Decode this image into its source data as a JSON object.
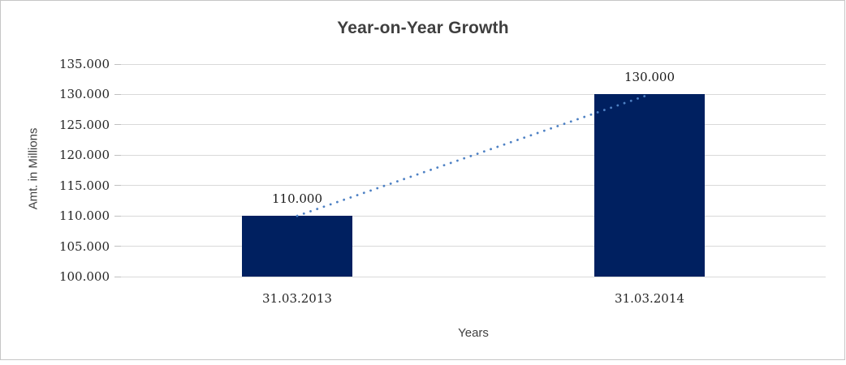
{
  "window": {
    "background": "#ffffff",
    "border_color": "#c6c6c6"
  },
  "chart_data": {
    "type": "bar",
    "title": "Year-on-Year Growth",
    "xlabel": "Years",
    "ylabel": "Amt. in Millions",
    "categories": [
      "31.03.2013",
      "31.03.2014"
    ],
    "values": [
      110000,
      130000
    ],
    "data_labels": [
      "110.000",
      "130.000"
    ],
    "y_ticks": [
      "135.000",
      "130.000",
      "125.000",
      "120.000",
      "115.000",
      "110.000",
      "105.000",
      "100.000"
    ],
    "ylim": [
      100000,
      135000
    ],
    "grid": "horizontal",
    "legend": "none",
    "trendline": {
      "style": "dotted",
      "from": 110000,
      "to": 130000,
      "color": "#4e81c4"
    },
    "colors": {
      "bar": "#002060",
      "gridline": "#d9d9d9",
      "tick_mark": "#c0c0c0",
      "title_text": "#3f3f3f",
      "axis_title_text": "#404040",
      "tick_text": "#262626",
      "label_text": "#1a1a1a"
    }
  }
}
